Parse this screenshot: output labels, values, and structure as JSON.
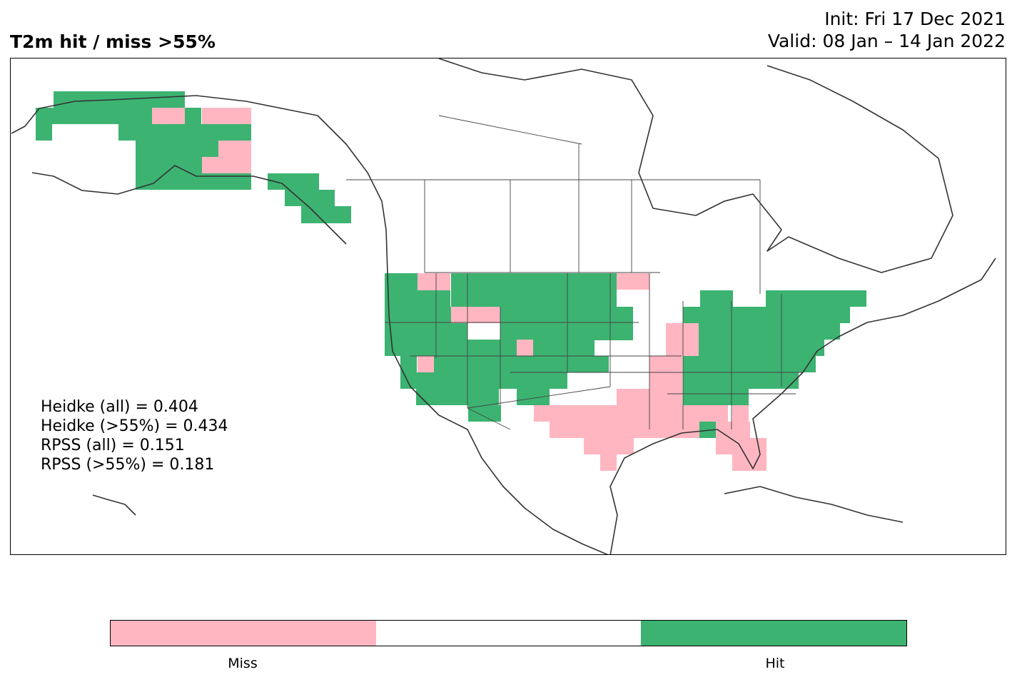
{
  "header": {
    "title": "T2m hit / miss  >55%",
    "init_line": "Init: Fri 17 Dec 2021",
    "valid_line": "Valid: 08 Jan – 14 Jan 2022"
  },
  "stats": [
    "Heidke (all) = 0.404",
    "Heidke (>55%) = 0.434",
    "RPSS (all) = 0.151",
    "RPSS (>55%) = 0.181"
  ],
  "colorbar": {
    "segments": [
      {
        "name": "Miss",
        "color": "#ffb6c1"
      },
      {
        "name": "",
        "color": "#ffffff"
      },
      {
        "name": "Hit",
        "color": "#3cb371"
      }
    ],
    "labels": [
      "Miss",
      "Hit"
    ]
  },
  "colors": {
    "hit": "#3cb371",
    "miss": "#ffb6c1",
    "coast": "#333333"
  }
}
